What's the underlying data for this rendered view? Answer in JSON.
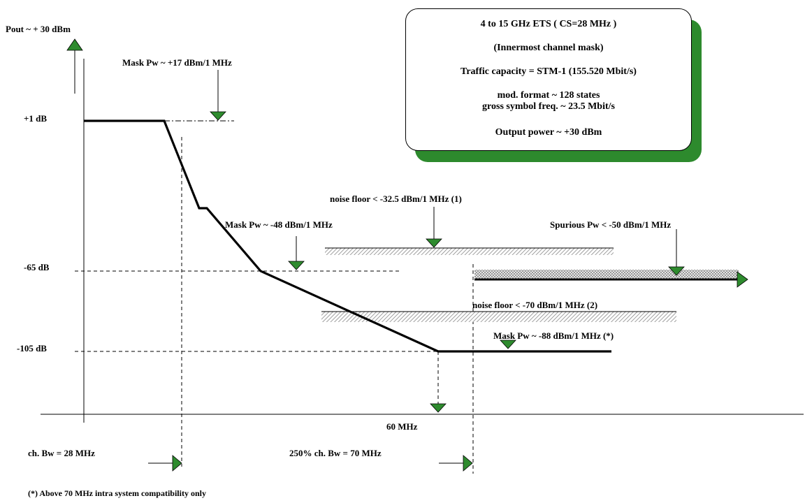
{
  "colors": {
    "triangle_fill": "#2e8b2e",
    "shadow": "#2d8a2d",
    "line": "#000000",
    "hatch": "#999999"
  },
  "icons": {
    "marker": "green-triangle-marker",
    "axis_arrow": "up-arrow"
  },
  "info_box": {
    "line1": "4 to 15 GHz ETS ( CS=28 MHz )",
    "line2": "(Innermost channel mask)",
    "line3": "Traffic capacity = STM-1 (155.520 Mbit/s)",
    "line4": "mod. format ~ 128 states",
    "line5": "gross symbol freq. ~ 23.5 Mbit/s",
    "line6": "Output power ~ +30 dBm"
  },
  "labels": {
    "pout": "Pout ~ + 30 dBm",
    "mask_17": "Mask Pw ~ +17 dBm/1 MHz",
    "level_1db": "+1 dB",
    "mask_48": "Mask Pw ~ -48 dBm/1 MHz",
    "noise_floor_1": "noise floor < -32.5 dBm/1 MHz (1)",
    "spurious": "Spurious Pw < -50 dBm/1 MHz",
    "level_65db": "-65 dB",
    "noise_floor_2": "noise floor < -70 dBm/1 MHz (2)",
    "mask_88": "Mask Pw ~ -88 dBm/1 MHz (*)",
    "level_105db": "-105 dB",
    "freq_60": "60 MHz",
    "ch_bw": "ch. Bw = 28 MHz",
    "ch_bw_250": "250% ch. Bw = 70 MHz",
    "footnote": "(*) Above 70 MHz intra system compatibility only"
  }
}
